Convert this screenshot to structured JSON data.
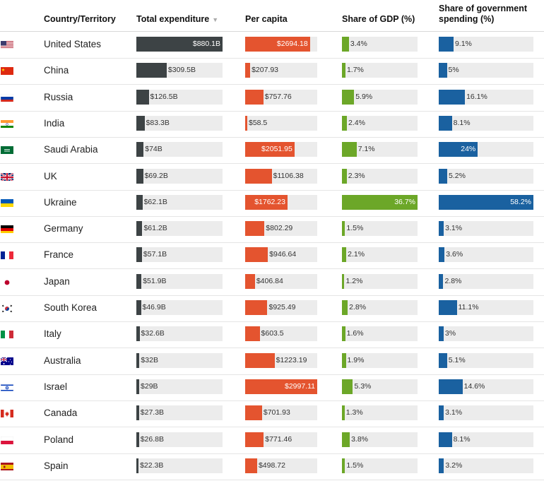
{
  "chart_data": {
    "type": "table",
    "columns": {
      "country": "Country/Territory",
      "total": "Total expenditure",
      "per_capita": "Per capita",
      "gdp": "Share of GDP (%)",
      "gov": "Share of government spending (%)"
    },
    "sort_icon": "▼",
    "colors": {
      "total": "#3d4345",
      "per_capita": "#e4542f",
      "gdp": "#6ca728",
      "gov": "#1a61a0",
      "track": "#ececec"
    },
    "rows": [
      {
        "country": "United States",
        "flag": "us",
        "total": 880.1,
        "total_label": "$880.1B",
        "per_capita": 2694.18,
        "per_capita_label": "$2694.18",
        "gdp": 3.4,
        "gdp_label": "3.4%",
        "gov": 9.1,
        "gov_label": "9.1%"
      },
      {
        "country": "China",
        "flag": "cn",
        "total": 309.5,
        "total_label": "$309.5B",
        "per_capita": 207.93,
        "per_capita_label": "$207.93",
        "gdp": 1.7,
        "gdp_label": "1.7%",
        "gov": 5,
        "gov_label": "5%"
      },
      {
        "country": "Russia",
        "flag": "ru",
        "total": 126.5,
        "total_label": "$126.5B",
        "per_capita": 757.76,
        "per_capita_label": "$757.76",
        "gdp": 5.9,
        "gdp_label": "5.9%",
        "gov": 16.1,
        "gov_label": "16.1%"
      },
      {
        "country": "India",
        "flag": "in",
        "total": 83.3,
        "total_label": "$83.3B",
        "per_capita": 58.5,
        "per_capita_label": "$58.5",
        "gdp": 2.4,
        "gdp_label": "2.4%",
        "gov": 8.1,
        "gov_label": "8.1%"
      },
      {
        "country": "Saudi Arabia",
        "flag": "sa",
        "total": 74,
        "total_label": "$74B",
        "per_capita": 2051.95,
        "per_capita_label": "$2051.95",
        "gdp": 7.1,
        "gdp_label": "7.1%",
        "gov": 24,
        "gov_label": "24%"
      },
      {
        "country": "UK",
        "flag": "uk",
        "total": 69.2,
        "total_label": "$69.2B",
        "per_capita": 1106.38,
        "per_capita_label": "$1106.38",
        "gdp": 2.3,
        "gdp_label": "2.3%",
        "gov": 5.2,
        "gov_label": "5.2%"
      },
      {
        "country": "Ukraine",
        "flag": "ua",
        "total": 62.1,
        "total_label": "$62.1B",
        "per_capita": 1762.23,
        "per_capita_label": "$1762.23",
        "gdp": 36.7,
        "gdp_label": "36.7%",
        "gov": 58.2,
        "gov_label": "58.2%"
      },
      {
        "country": "Germany",
        "flag": "de",
        "total": 61.2,
        "total_label": "$61.2B",
        "per_capita": 802.29,
        "per_capita_label": "$802.29",
        "gdp": 1.5,
        "gdp_label": "1.5%",
        "gov": 3.1,
        "gov_label": "3.1%"
      },
      {
        "country": "France",
        "flag": "fr",
        "total": 57.1,
        "total_label": "$57.1B",
        "per_capita": 946.64,
        "per_capita_label": "$946.64",
        "gdp": 2.1,
        "gdp_label": "2.1%",
        "gov": 3.6,
        "gov_label": "3.6%"
      },
      {
        "country": "Japan",
        "flag": "jp",
        "total": 51.9,
        "total_label": "$51.9B",
        "per_capita": 406.84,
        "per_capita_label": "$406.84",
        "gdp": 1.2,
        "gdp_label": "1.2%",
        "gov": 2.8,
        "gov_label": "2.8%"
      },
      {
        "country": "South Korea",
        "flag": "kr",
        "total": 46.9,
        "total_label": "$46.9B",
        "per_capita": 925.49,
        "per_capita_label": "$925.49",
        "gdp": 2.8,
        "gdp_label": "2.8%",
        "gov": 11.1,
        "gov_label": "11.1%"
      },
      {
        "country": "Italy",
        "flag": "it",
        "total": 32.6,
        "total_label": "$32.6B",
        "per_capita": 603.5,
        "per_capita_label": "$603.5",
        "gdp": 1.6,
        "gdp_label": "1.6%",
        "gov": 3,
        "gov_label": "3%"
      },
      {
        "country": "Australia",
        "flag": "au",
        "total": 32,
        "total_label": "$32B",
        "per_capita": 1223.19,
        "per_capita_label": "$1223.19",
        "gdp": 1.9,
        "gdp_label": "1.9%",
        "gov": 5.1,
        "gov_label": "5.1%"
      },
      {
        "country": "Israel",
        "flag": "il",
        "total": 29,
        "total_label": "$29B",
        "per_capita": 2997.11,
        "per_capita_label": "$2997.11",
        "gdp": 5.3,
        "gdp_label": "5.3%",
        "gov": 14.6,
        "gov_label": "14.6%"
      },
      {
        "country": "Canada",
        "flag": "ca",
        "total": 27.3,
        "total_label": "$27.3B",
        "per_capita": 701.93,
        "per_capita_label": "$701.93",
        "gdp": 1.3,
        "gdp_label": "1.3%",
        "gov": 3.1,
        "gov_label": "3.1%"
      },
      {
        "country": "Poland",
        "flag": "pl",
        "total": 26.8,
        "total_label": "$26.8B",
        "per_capita": 771.46,
        "per_capita_label": "$771.46",
        "gdp": 3.8,
        "gdp_label": "3.8%",
        "gov": 8.1,
        "gov_label": "8.1%"
      },
      {
        "country": "Spain",
        "flag": "es",
        "total": 22.3,
        "total_label": "$22.3B",
        "per_capita": 498.72,
        "per_capita_label": "$498.72",
        "gdp": 1.5,
        "gdp_label": "1.5%",
        "gov": 3.2,
        "gov_label": "3.2%"
      }
    ],
    "max": {
      "total": 880.1,
      "per_capita": 2997.11,
      "gdp": 36.7,
      "gov": 58.2
    }
  }
}
